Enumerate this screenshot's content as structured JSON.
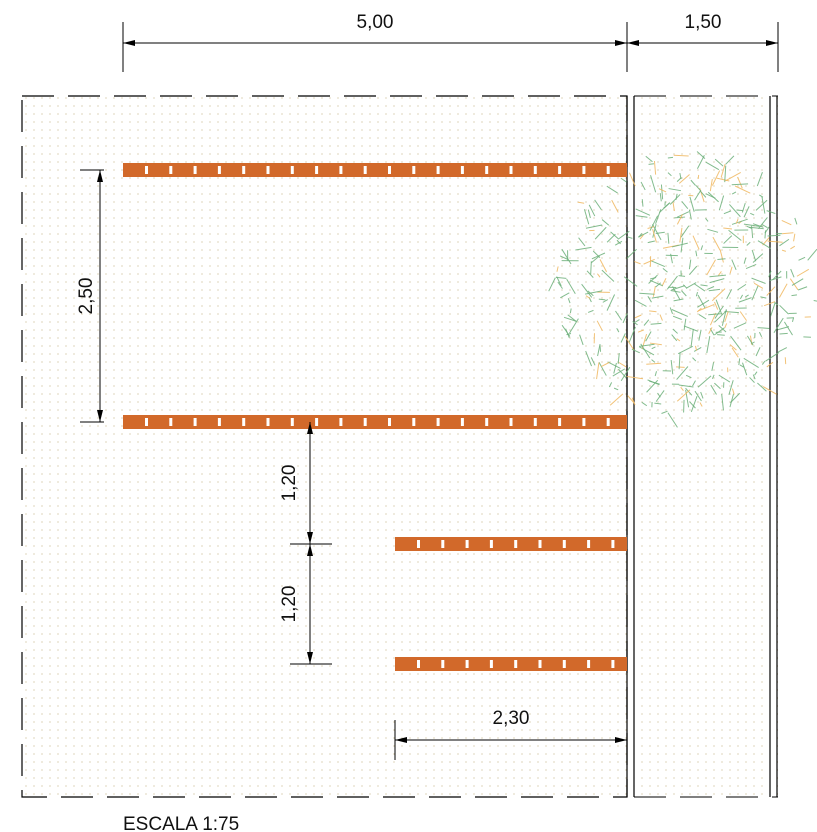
{
  "dimensions": {
    "top_left": "5,00",
    "top_right": "1,50",
    "left": "2,50",
    "middle_upper": "1,20",
    "middle_lower": "1,20",
    "bottom": "2,30"
  },
  "scale": "ESCALA 1:75"
}
